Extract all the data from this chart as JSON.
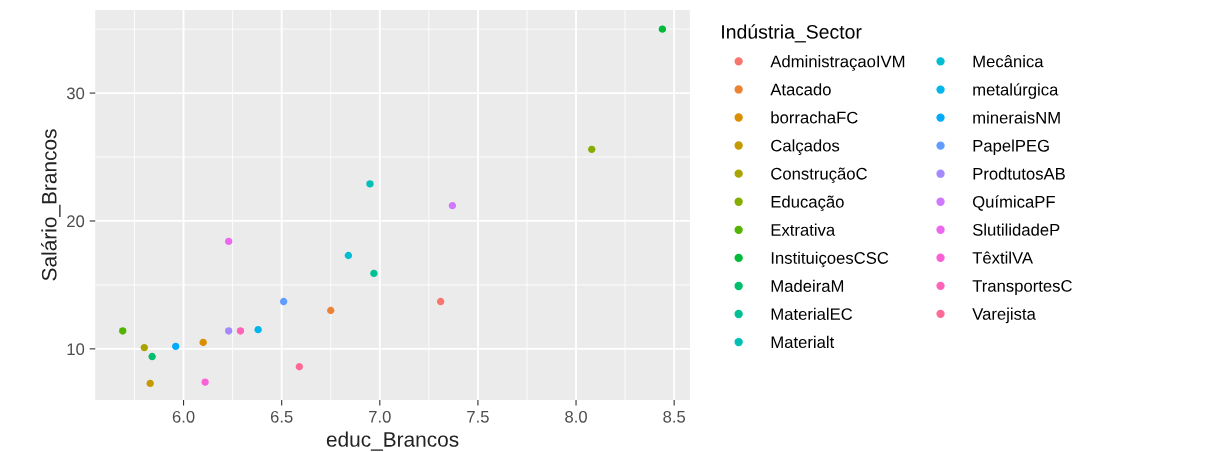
{
  "chart_data": {
    "type": "scatter",
    "xlabel": "educ_Brancos",
    "ylabel": "Salário_Brancos",
    "legend_title": "Indústria_Sector",
    "legend": "right",
    "grid": true,
    "marker": "circle",
    "xlim": [
      5.55,
      8.58
    ],
    "ylim": [
      6.0,
      36.5
    ],
    "xticks": [
      {
        "value": 6,
        "label": "6.0"
      },
      {
        "value": 6.5,
        "label": "6.5"
      },
      {
        "value": 7,
        "label": "7.0"
      },
      {
        "value": 7.5,
        "label": "7.5"
      },
      {
        "value": 8,
        "label": "8.0"
      },
      {
        "value": 8.5,
        "label": "8.5"
      }
    ],
    "yticks": [
      10,
      20,
      30
    ],
    "series": [
      {
        "name": "AdministraçaoIVM",
        "color": "#f8766d",
        "x": [
          7.31
        ],
        "values": [
          13.7
        ]
      },
      {
        "name": "Atacado",
        "color": "#eb8335",
        "x": [
          6.75
        ],
        "values": [
          13.0
        ]
      },
      {
        "name": "borrachaFC",
        "color": "#da8f00",
        "x": [
          6.1
        ],
        "values": [
          10.5
        ]
      },
      {
        "name": "Calçados",
        "color": "#c49a00",
        "x": [
          5.83
        ],
        "values": [
          7.3
        ]
      },
      {
        "name": "ConstruçãoC",
        "color": "#a9a400",
        "x": [
          5.8
        ],
        "values": [
          10.1
        ]
      },
      {
        "name": "Educação",
        "color": "#86ac00",
        "x": [
          8.08
        ],
        "values": [
          25.6
        ]
      },
      {
        "name": "Extrativa",
        "color": "#53b400",
        "x": [
          5.69
        ],
        "values": [
          11.4
        ]
      },
      {
        "name": "InstituiçoesCSC",
        "color": "#00ba38",
        "x": [
          8.44
        ],
        "values": [
          35.0
        ]
      },
      {
        "name": "MadeiraM",
        "color": "#00be6d",
        "x": [
          5.84
        ],
        "values": [
          9.4
        ]
      },
      {
        "name": "MaterialEC",
        "color": "#00c094",
        "x": [
          6.97
        ],
        "values": [
          15.9
        ]
      },
      {
        "name": "Materialt",
        "color": "#00c0b5",
        "x": [
          6.95
        ],
        "values": [
          22.9
        ]
      },
      {
        "name": "Mecânica",
        "color": "#00bdd2",
        "x": [
          6.84
        ],
        "values": [
          17.3
        ]
      },
      {
        "name": "metalúrgica",
        "color": "#00b6eb",
        "x": [
          6.38
        ],
        "values": [
          11.5
        ]
      },
      {
        "name": "mineraisNM",
        "color": "#00abfd",
        "x": [
          5.96
        ],
        "values": [
          10.2
        ]
      },
      {
        "name": "PapelPEG",
        "color": "#619cff",
        "x": [
          6.51
        ],
        "values": [
          13.7
        ]
      },
      {
        "name": "ProdtutosAB",
        "color": "#a58aff",
        "x": [
          6.23
        ],
        "values": [
          11.4
        ]
      },
      {
        "name": "QuímicaPF",
        "color": "#d078ff",
        "x": [
          7.37
        ],
        "values": [
          21.2
        ]
      },
      {
        "name": "SlutilidadeP",
        "color": "#ec69ef",
        "x": [
          6.23
        ],
        "values": [
          18.4
        ]
      },
      {
        "name": "TêxtilVA",
        "color": "#fb61d7",
        "x": [
          6.11
        ],
        "values": [
          7.4
        ]
      },
      {
        "name": "TransportesC",
        "color": "#ff63b9",
        "x": [
          6.29
        ],
        "values": [
          11.4
        ]
      },
      {
        "name": "Varejista",
        "color": "#ff6b96",
        "x": [
          6.59
        ],
        "values": [
          8.6
        ]
      }
    ]
  }
}
